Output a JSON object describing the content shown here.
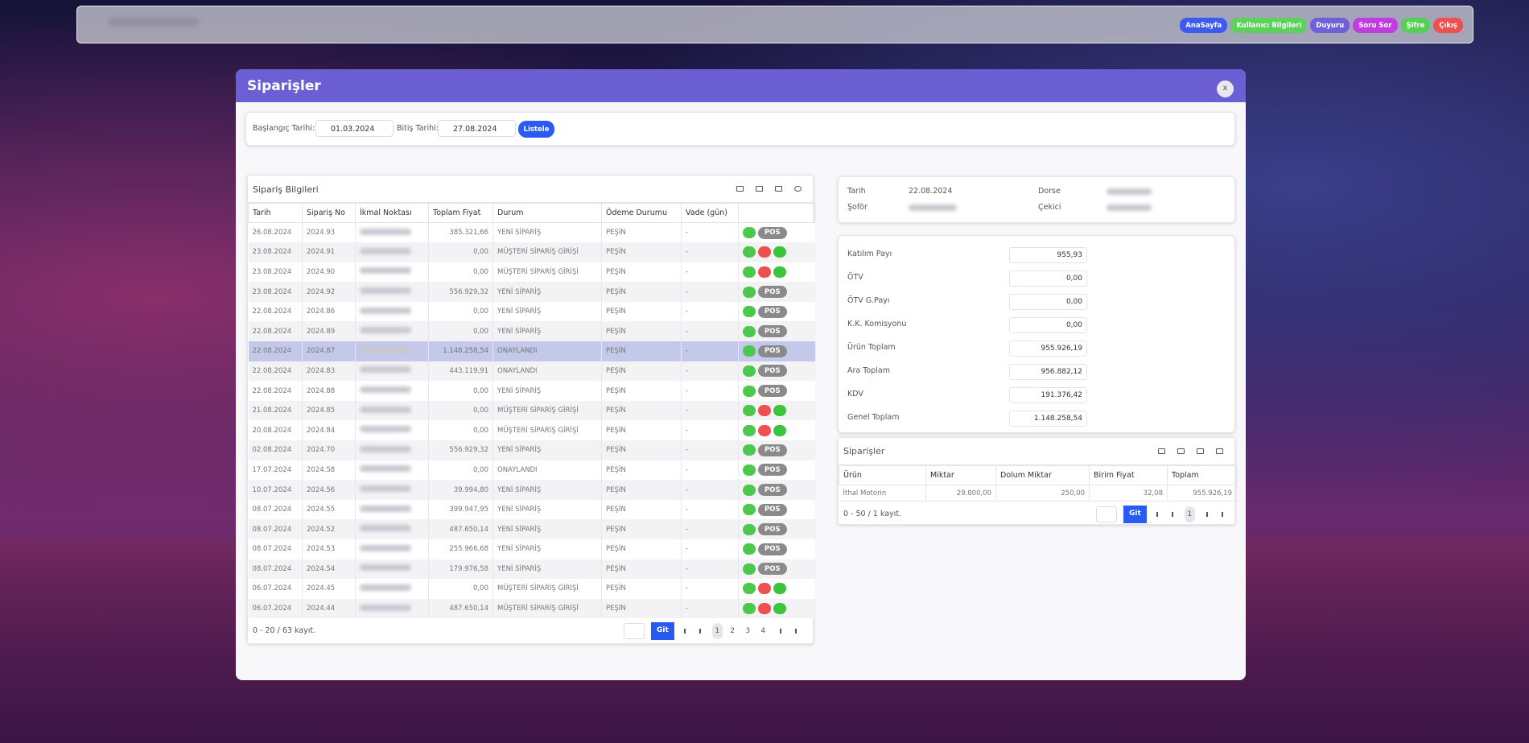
{
  "topbar": {
    "nav": [
      "AnaSayfa",
      "Kullanıcı Bilgileri",
      "Duyuru",
      "Soru Sor",
      "Şifre",
      "Çıkış"
    ]
  },
  "modal": {
    "title": "Siparişler",
    "close": "x",
    "filter": {
      "start_label": "Başlangıç Tarihi:",
      "start": "01.03.2024",
      "end_label": "Bitiş Tarihi:",
      "end": "27.08.2024",
      "button": "Listele"
    }
  },
  "orders": {
    "title": "Sipariş Bilgileri",
    "columns": [
      "Tarih",
      "Sipariş No",
      "İkmal Noktası",
      "Toplam Fiyat",
      "Durum",
      "Ödeme Durumu",
      "Vade (gün)"
    ],
    "rows": [
      {
        "date": "26.08.2024",
        "no": "2024.93",
        "total": "385.321,66",
        "status": "YENİ SİPARİŞ",
        "payment": "PEŞİN",
        "term": "-",
        "pos": "POS"
      },
      {
        "date": "23.08.2024",
        "no": "2024.91",
        "total": "0,00",
        "status": "MÜŞTERİ SİPARİŞ GİRİŞİ",
        "payment": "PEŞİN",
        "term": "-"
      },
      {
        "date": "23.08.2024",
        "no": "2024.90",
        "total": "0,00",
        "status": "MÜŞTERİ SİPARİŞ GİRİŞİ",
        "payment": "PEŞİN",
        "term": "-"
      },
      {
        "date": "23.08.2024",
        "no": "2024.92",
        "total": "556.929,32",
        "status": "YENİ SİPARİŞ",
        "payment": "PEŞİN",
        "term": "-",
        "pos": "POS"
      },
      {
        "date": "22.08.2024",
        "no": "2024.86",
        "total": "0,00",
        "status": "YENİ SİPARİŞ",
        "payment": "PEŞİN",
        "term": "-",
        "pos": "POS"
      },
      {
        "date": "22.08.2024",
        "no": "2024.89",
        "total": "0,00",
        "status": "YENİ SİPARİŞ",
        "payment": "PEŞİN",
        "term": "-",
        "pos": "POS"
      },
      {
        "date": "22.08.2024",
        "no": "2024.87",
        "total": "1.148.258,54",
        "status": "ONAYLANDI",
        "payment": "PEŞİN",
        "term": "-",
        "pos": "POS",
        "selected": true
      },
      {
        "date": "22.08.2024",
        "no": "2024.83",
        "total": "443.119,91",
        "status": "ONAYLANDI",
        "payment": "PEŞİN",
        "term": "-",
        "pos": "POS"
      },
      {
        "date": "22.08.2024",
        "no": "2024.88",
        "total": "0,00",
        "status": "YENİ SİPARİŞ",
        "payment": "PEŞİN",
        "term": "-",
        "pos": "POS"
      },
      {
        "date": "21.08.2024",
        "no": "2024.85",
        "total": "0,00",
        "status": "MÜŞTERİ SİPARİŞ GİRİŞİ",
        "payment": "PEŞİN",
        "term": "-"
      },
      {
        "date": "20.08.2024",
        "no": "2024.84",
        "total": "0,00",
        "status": "MÜŞTERİ SİPARİŞ GİRİŞİ",
        "payment": "PEŞİN",
        "term": "-"
      },
      {
        "date": "02.08.2024",
        "no": "2024.70",
        "total": "556.929,32",
        "status": "YENİ SİPARİŞ",
        "payment": "PEŞİN",
        "term": "-",
        "pos": "POS"
      },
      {
        "date": "17.07.2024",
        "no": "2024.58",
        "total": "0,00",
        "status": "ONAYLANDI",
        "payment": "PEŞİN",
        "term": "-",
        "pos": "POS"
      },
      {
        "date": "10.07.2024",
        "no": "2024.56",
        "total": "39.994,80",
        "status": "YENİ SİPARİŞ",
        "payment": "PEŞİN",
        "term": "-",
        "pos": "POS"
      },
      {
        "date": "08.07.2024",
        "no": "2024.55",
        "total": "399.947,95",
        "status": "YENİ SİPARİŞ",
        "payment": "PEŞİN",
        "term": "-",
        "pos": "POS"
      },
      {
        "date": "08.07.2024",
        "no": "2024.52",
        "total": "487.650,14",
        "status": "YENİ SİPARİŞ",
        "payment": "PEŞİN",
        "term": "-",
        "pos": "POS"
      },
      {
        "date": "08.07.2024",
        "no": "2024.53",
        "total": "255.966,68",
        "status": "YENİ SİPARİŞ",
        "payment": "PEŞİN",
        "term": "-",
        "pos": "POS"
      },
      {
        "date": "08.07.2024",
        "no": "2024.54",
        "total": "179.976,58",
        "status": "YENİ SİPARİŞ",
        "payment": "PEŞİN",
        "term": "-",
        "pos": "POS"
      },
      {
        "date": "06.07.2024",
        "no": "2024.45",
        "total": "0,00",
        "status": "MÜŞTERİ SİPARİŞ GİRİŞİ",
        "payment": "PEŞİN",
        "term": "-"
      },
      {
        "date": "06.07.2024",
        "no": "2024.44",
        "total": "487.650,14",
        "status": "MÜŞTERİ SİPARİŞ GİRİŞİ",
        "payment": "PEŞİN",
        "term": "-"
      }
    ],
    "footer": "0 - 20 / 63 kayıt.",
    "go": "Git",
    "pages": [
      "1",
      "2",
      "3",
      "4"
    ]
  },
  "detail": {
    "date_label": "Tarih",
    "date": "22.08.2024",
    "trailer_label": "Dorse",
    "driver_label": "Şoför",
    "truck_label": "Çekici",
    "totals": [
      {
        "label": "Katılım Payı",
        "value": "955,93"
      },
      {
        "label": "ÖTV",
        "value": "0,00"
      },
      {
        "label": "ÖTV G.Payı",
        "value": "0,00"
      },
      {
        "label": "K.K. Komisyonu",
        "value": "0,00"
      },
      {
        "label": "Ürün Toplam",
        "value": "955.926,19"
      },
      {
        "label": "Ara Toplam",
        "value": "956.882,12"
      },
      {
        "label": "KDV",
        "value": "191.376,42"
      },
      {
        "label": "Genel Toplam",
        "value": "1.148.258,54"
      }
    ],
    "items": {
      "title": "Siparişler",
      "columns": [
        "Ürün",
        "Miktar",
        "Dolum Miktar",
        "Birim Fiyat",
        "Toplam"
      ],
      "rows": [
        [
          "İthal Motorin",
          "29.800,00",
          "250,00",
          "32,08",
          "955.926,19"
        ]
      ],
      "footer": "0 - 50 / 1 kayıt.",
      "go": "Git",
      "pages": [
        "1"
      ]
    }
  }
}
